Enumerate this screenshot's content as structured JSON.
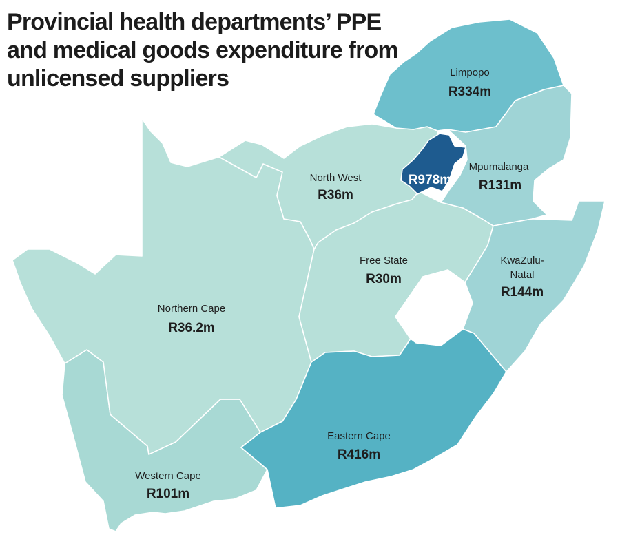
{
  "title_lines": [
    "Provincial health departments’ PPE",
    "and medical goods expenditure from",
    "unlicensed suppliers"
  ],
  "provinces": [
    {
      "id": "limpopo",
      "name": "Limpopo",
      "value": "R334m",
      "color": "#6dbfcc"
    },
    {
      "id": "mpumalanga",
      "name": "Mpumalanga",
      "value": "R131m",
      "color": "#9fd4d6"
    },
    {
      "id": "gauteng",
      "name": "",
      "value": "R978m",
      "color": "#1e5b8f"
    },
    {
      "id": "north-west",
      "name": "North West",
      "value": "R36m",
      "color": "#b7e0d9"
    },
    {
      "id": "free-state",
      "name": "Free State",
      "value": "R30m",
      "color": "#b7e0d9"
    },
    {
      "id": "kwazulu-natal",
      "name_lines": [
        "KwaZulu-",
        "Natal"
      ],
      "value": "R144m",
      "color": "#9fd4d6"
    },
    {
      "id": "northern-cape",
      "name": "Northern Cape",
      "value": "R36.2m",
      "color": "#b7e0d9"
    },
    {
      "id": "eastern-cape",
      "name": "Eastern Cape",
      "value": "R416m",
      "color": "#55b2c4"
    },
    {
      "id": "western-cape",
      "name": "Western Cape",
      "value": "R101m",
      "color": "#a8d9d4"
    }
  ]
}
